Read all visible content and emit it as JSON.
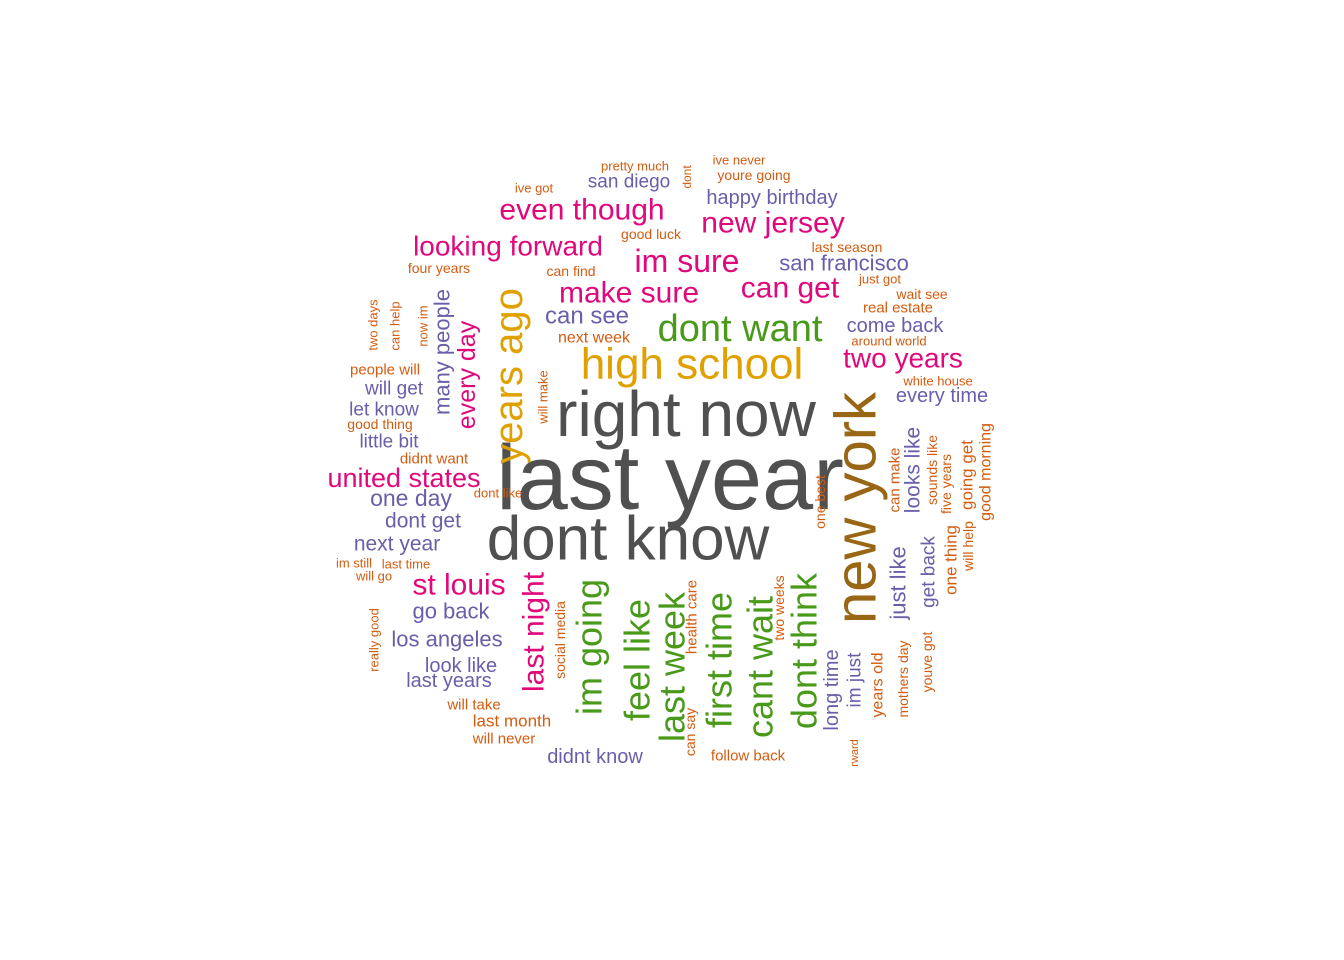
{
  "chart_data": {
    "type": "wordcloud",
    "title": "",
    "palette": {
      "gray": "#505050",
      "brown": "#986615",
      "gold": "#e0a000",
      "green": "#4a9a1a",
      "magenta": "#e0087a",
      "purple": "#6a5eaa",
      "orange": "#d35c10"
    },
    "words": [
      {
        "text": "last year",
        "color": "gray"
      },
      {
        "text": "right now",
        "color": "gray"
      },
      {
        "text": "dont know",
        "color": "gray"
      },
      {
        "text": "new york",
        "color": "brown"
      },
      {
        "text": "high school",
        "color": "gold"
      },
      {
        "text": "years ago",
        "color": "gold"
      },
      {
        "text": "dont want",
        "color": "green"
      },
      {
        "text": "im going",
        "color": "green"
      },
      {
        "text": "feel like",
        "color": "green"
      },
      {
        "text": "last week",
        "color": "green"
      },
      {
        "text": "first time",
        "color": "green"
      },
      {
        "text": "cant wait",
        "color": "green"
      },
      {
        "text": "dont think",
        "color": "green"
      },
      {
        "text": "even though",
        "color": "magenta"
      },
      {
        "text": "new jersey",
        "color": "magenta"
      },
      {
        "text": "looking forward",
        "color": "magenta"
      },
      {
        "text": "im sure",
        "color": "magenta"
      },
      {
        "text": "can get",
        "color": "magenta"
      },
      {
        "text": "make sure",
        "color": "magenta"
      },
      {
        "text": "two years",
        "color": "magenta"
      },
      {
        "text": "united states",
        "color": "magenta"
      },
      {
        "text": "st louis",
        "color": "magenta"
      },
      {
        "text": "every day",
        "color": "magenta"
      },
      {
        "text": "last night",
        "color": "magenta"
      },
      {
        "text": "san diego",
        "color": "purple"
      },
      {
        "text": "happy birthday",
        "color": "purple"
      },
      {
        "text": "san francisco",
        "color": "purple"
      },
      {
        "text": "can see",
        "color": "purple"
      },
      {
        "text": "come back",
        "color": "purple"
      },
      {
        "text": "every time",
        "color": "purple"
      },
      {
        "text": "many people",
        "color": "purple"
      },
      {
        "text": "will get",
        "color": "purple"
      },
      {
        "text": "let know",
        "color": "purple"
      },
      {
        "text": "little bit",
        "color": "purple"
      },
      {
        "text": "one day",
        "color": "purple"
      },
      {
        "text": "dont get",
        "color": "purple"
      },
      {
        "text": "next year",
        "color": "purple"
      },
      {
        "text": "go back",
        "color": "purple"
      },
      {
        "text": "los angeles",
        "color": "purple"
      },
      {
        "text": "look like",
        "color": "purple"
      },
      {
        "text": "last years",
        "color": "purple"
      },
      {
        "text": "didnt know",
        "color": "purple"
      },
      {
        "text": "looks like",
        "color": "purple"
      },
      {
        "text": "just like",
        "color": "purple"
      },
      {
        "text": "get back",
        "color": "purple"
      },
      {
        "text": "long time",
        "color": "purple"
      },
      {
        "text": "im just",
        "color": "purple"
      },
      {
        "text": "pretty much",
        "color": "orange"
      },
      {
        "text": "ive never",
        "color": "orange"
      },
      {
        "text": "youre going",
        "color": "orange"
      },
      {
        "text": "ive got",
        "color": "orange"
      },
      {
        "text": "dont",
        "color": "orange"
      },
      {
        "text": "good luck",
        "color": "orange"
      },
      {
        "text": "last season",
        "color": "orange"
      },
      {
        "text": "four years",
        "color": "orange"
      },
      {
        "text": "can find",
        "color": "orange"
      },
      {
        "text": "just got",
        "color": "orange"
      },
      {
        "text": "wait see",
        "color": "orange"
      },
      {
        "text": "real estate",
        "color": "orange"
      },
      {
        "text": "next week",
        "color": "orange"
      },
      {
        "text": "around world",
        "color": "orange"
      },
      {
        "text": "white house",
        "color": "orange"
      },
      {
        "text": "two days",
        "color": "orange"
      },
      {
        "text": "can help",
        "color": "orange"
      },
      {
        "text": "now im",
        "color": "orange"
      },
      {
        "text": "people will",
        "color": "orange"
      },
      {
        "text": "good thing",
        "color": "orange"
      },
      {
        "text": "will make",
        "color": "orange"
      },
      {
        "text": "didnt want",
        "color": "orange"
      },
      {
        "text": "dont like",
        "color": "orange"
      },
      {
        "text": "im still",
        "color": "orange"
      },
      {
        "text": "last time",
        "color": "orange"
      },
      {
        "text": "will go",
        "color": "orange"
      },
      {
        "text": "really good",
        "color": "orange"
      },
      {
        "text": "will take",
        "color": "orange"
      },
      {
        "text": "last month",
        "color": "orange"
      },
      {
        "text": "will never",
        "color": "orange"
      },
      {
        "text": "social media",
        "color": "orange"
      },
      {
        "text": "health care",
        "color": "orange"
      },
      {
        "text": "can say",
        "color": "orange"
      },
      {
        "text": "two weeks",
        "color": "orange"
      },
      {
        "text": "follow back",
        "color": "orange"
      },
      {
        "text": "one best",
        "color": "orange"
      },
      {
        "text": "can make",
        "color": "orange"
      },
      {
        "text": "sounds like",
        "color": "orange"
      },
      {
        "text": "five years",
        "color": "orange"
      },
      {
        "text": "one thing",
        "color": "orange"
      },
      {
        "text": "going get",
        "color": "orange"
      },
      {
        "text": "will help",
        "color": "orange"
      },
      {
        "text": "good morning",
        "color": "orange"
      },
      {
        "text": "years old",
        "color": "orange"
      },
      {
        "text": "mothers day",
        "color": "orange"
      },
      {
        "text": "youve got",
        "color": "orange"
      },
      {
        "text": "rward",
        "color": "orange"
      }
    ]
  }
}
